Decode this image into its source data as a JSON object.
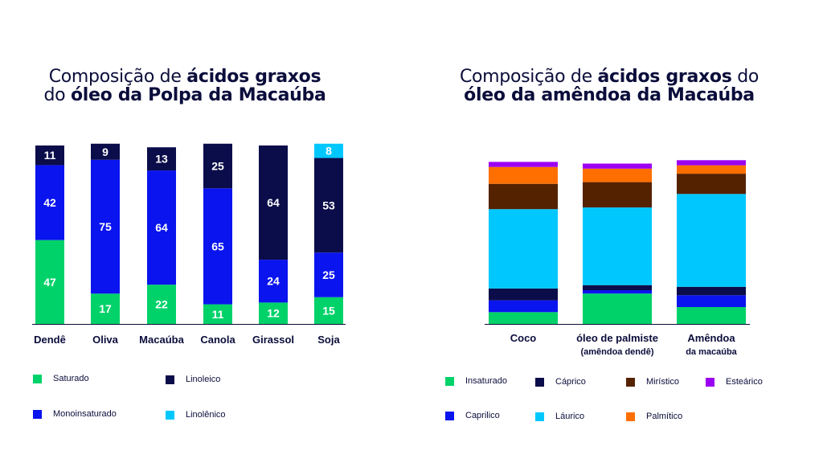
{
  "chart_data": [
    {
      "type": "bar",
      "stacked": true,
      "title_parts": [
        "Composição de ",
        "ácidos graxos",
        " do ",
        "óleo da Polpa da Macaúba"
      ],
      "categories": [
        "Dendê",
        "Oliva",
        "Macaúba",
        "Canola",
        "Girassol",
        "Soja"
      ],
      "series": [
        {
          "name": "Saturado",
          "color": "#00d26a",
          "values": [
            47,
            17,
            22,
            11,
            12,
            15
          ]
        },
        {
          "name": "Monoinsaturado",
          "color": "#0a14ee",
          "values": [
            42,
            75,
            64,
            65,
            24,
            25
          ]
        },
        {
          "name": "Linoleico",
          "color": "#0b0d4a",
          "values": [
            11,
            9,
            13,
            25,
            64,
            53
          ]
        },
        {
          "name": "Linolênico",
          "color": "#00c8ff",
          "values": [
            0,
            0,
            0,
            0,
            0,
            8
          ]
        }
      ],
      "ylim": [
        0,
        100
      ],
      "legend": [
        "Saturado",
        "Linoleico",
        "Monoinsaturado",
        "Linolênico"
      ],
      "data_labels": true
    },
    {
      "type": "bar",
      "stacked": true,
      "title_parts": [
        "Composição de ",
        "ácidos graxos",
        " do ",
        "óleo da amêndoa da Macaúba"
      ],
      "categories": [
        [
          "Coco"
        ],
        [
          "óleo de palmiste",
          "(amêndoa dendê)"
        ],
        [
          "Amêndoa",
          "da macaúba"
        ]
      ],
      "series": [
        {
          "name": "Insaturado",
          "color": "#00d26a",
          "values": [
            7,
            18,
            10
          ]
        },
        {
          "name": "Caprilico",
          "color": "#0a14ee",
          "values": [
            7,
            2,
            7
          ]
        },
        {
          "name": "Cáprico",
          "color": "#0b0d4a",
          "values": [
            7,
            3,
            5
          ]
        },
        {
          "name": "Láurico",
          "color": "#00c8ff",
          "values": [
            47,
            46,
            55
          ]
        },
        {
          "name": "Mirístico",
          "color": "#552200",
          "values": [
            15,
            15,
            12
          ]
        },
        {
          "name": "Palmítico",
          "color": "#ff6f00",
          "values": [
            10,
            8,
            5
          ]
        },
        {
          "name": "Esteárico",
          "color": "#9c00f2",
          "values": [
            3,
            3,
            3
          ]
        }
      ],
      "ylim": [
        0,
        100
      ],
      "legend": [
        "Insaturado",
        "Cáprico",
        "Mirístico",
        "Esteárico",
        "Caprilico",
        "Láurico",
        "Palmítico"
      ],
      "data_labels": false
    }
  ]
}
